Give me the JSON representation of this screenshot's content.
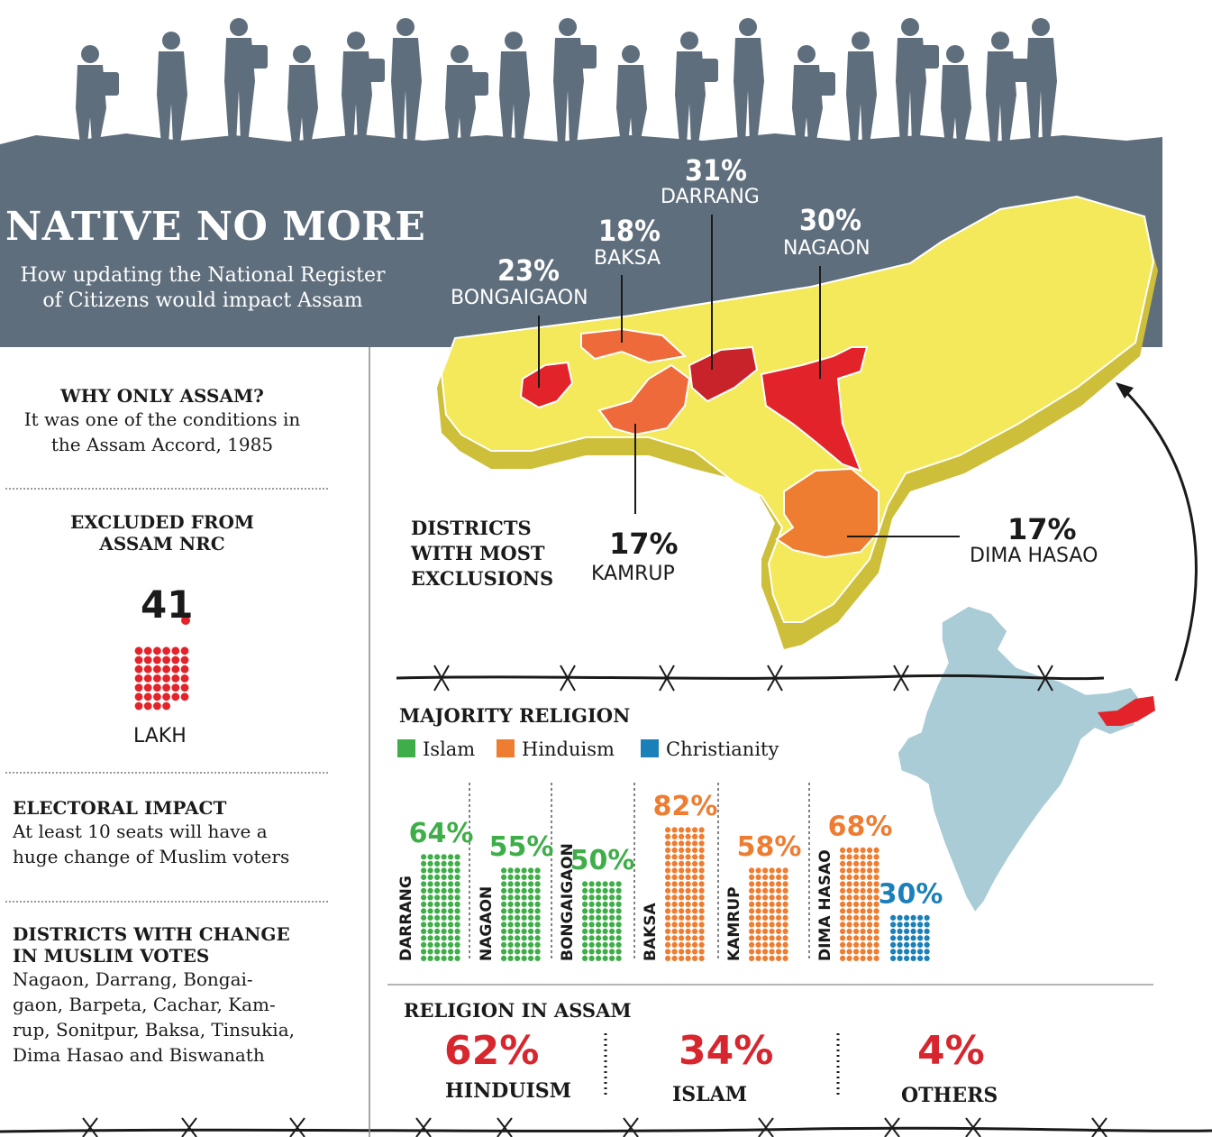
{
  "header": {
    "title": "NATIVE NO MORE",
    "subtitle_line1": "How updating the National Register",
    "subtitle_line2": "of Citizens would impact Assam"
  },
  "sidebar": {
    "why": {
      "heading": "WHY ONLY ASSAM?",
      "line1": "It was one of the conditions in",
      "line2": "the Assam Accord, 1985"
    },
    "excluded": {
      "heading_line1": "EXCLUDED FROM",
      "heading_line2": "ASSAM NRC",
      "value": "41",
      "unit": "LAKH"
    },
    "electoral": {
      "heading": "ELECTORAL IMPACT",
      "line1": "At least 10 seats will have a",
      "line2": "huge change of Muslim voters"
    },
    "districts_change": {
      "heading_line1": "DISTRICTS WITH CHANGE",
      "heading_line2": "IN MUSLIM VOTES",
      "lines": [
        "Nagaon, Darrang, Bongai-",
        "gaon, Barpeta, Cachar, Kam-",
        "rup, Sonitpur, Baksa, Tinsukia,",
        "Dima Hasao and Biswanath"
      ]
    }
  },
  "map_section": {
    "heading_lines": [
      "DISTRICTS",
      "WITH MOST",
      "EXCLUSIONS"
    ],
    "districts": [
      {
        "pct": "31%",
        "name": "DARRANG"
      },
      {
        "pct": "18%",
        "name": "BAKSA"
      },
      {
        "pct": "30%",
        "name": "NAGAON"
      },
      {
        "pct": "23%",
        "name": "BONGAIGAON"
      },
      {
        "pct": "17%",
        "name": "KAMRUP"
      },
      {
        "pct": "17%",
        "name": "DIMA HASAO"
      }
    ]
  },
  "religion_legend": {
    "heading": "MAJORITY RELIGION",
    "items": [
      {
        "label": "Islam",
        "color": "#3fae49"
      },
      {
        "label": "Hinduism",
        "color": "#ee7d31"
      },
      {
        "label": "Christianity",
        "color": "#1b7fb8"
      }
    ]
  },
  "religion_assam": {
    "heading": "RELIGION IN ASSAM",
    "items": [
      {
        "pct": "62%",
        "name": "HINDUISM"
      },
      {
        "pct": "34%",
        "name": "ISLAM"
      },
      {
        "pct": "4%",
        "name": "OTHERS"
      }
    ]
  },
  "chart_data": [
    {
      "type": "bar",
      "title": "MAJORITY RELIGION",
      "categories": [
        "DARRANG",
        "NAGAON",
        "BONGAIGAON",
        "BAKSA",
        "KAMRUP",
        "DIMA HASAO"
      ],
      "series": [
        {
          "name": "Islam",
          "color": "#3fae49",
          "values": [
            64,
            55,
            50,
            null,
            null,
            null
          ],
          "labels": [
            "64%",
            "55%",
            "50%",
            "",
            "",
            ""
          ]
        },
        {
          "name": "Hinduism",
          "color": "#ee7d31",
          "values": [
            null,
            null,
            null,
            82,
            58,
            68
          ],
          "labels": [
            "",
            "",
            "",
            "82%",
            "58%",
            "68%"
          ]
        },
        {
          "name": "Christianity",
          "color": "#1b7fb8",
          "values": [
            null,
            null,
            null,
            null,
            null,
            30
          ],
          "labels": [
            "",
            "",
            "",
            "",
            "",
            "30%"
          ]
        }
      ],
      "ylim": [
        0,
        100
      ]
    },
    {
      "type": "table",
      "title": "DISTRICTS WITH MOST EXCLUSIONS",
      "categories": [
        "DARRANG",
        "NAGAON",
        "BONGAIGAON",
        "BAKSA",
        "KAMRUP",
        "DIMA HASAO"
      ],
      "values": [
        31,
        30,
        23,
        18,
        17,
        17
      ]
    },
    {
      "type": "table",
      "title": "RELIGION IN ASSAM",
      "categories": [
        "HINDUISM",
        "ISLAM",
        "OTHERS"
      ],
      "values": [
        62,
        34,
        4
      ]
    }
  ],
  "colors": {
    "banner": "#5f6e7c",
    "assam_fill": "#f3e95b",
    "assam_side": "#cdbf3a",
    "red": "#e2232a",
    "orange": "#ee7d31",
    "india": "#a9ccd6"
  }
}
